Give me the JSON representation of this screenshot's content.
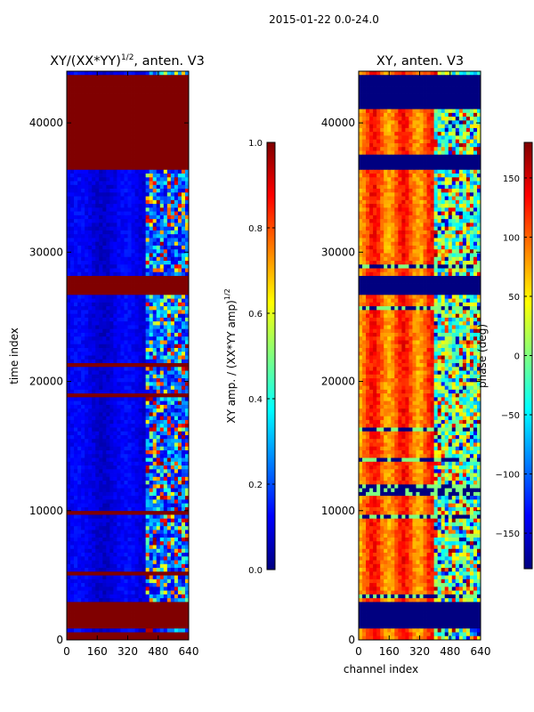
{
  "figure": {
    "suptitle": "2015-01-22 0.0-24.0"
  },
  "chart_data": [
    {
      "type": "heatmap",
      "title": "XY/(XX*YY)^{1/2}, anten. V3",
      "title_main": "XY/(XX*YY)",
      "title_exp": "1/2",
      "title_tail": ", anten. V3",
      "xlabel": "",
      "ylabel": "time index",
      "xlim": [
        0,
        640
      ],
      "ylim": [
        0,
        44000
      ],
      "xticks": [
        0,
        160,
        320,
        480,
        640
      ],
      "yticks": [
        0,
        10000,
        20000,
        30000,
        40000
      ],
      "colorbar": {
        "label": "XY amp. / (XX*YY amp)^{1/2}",
        "label_main": "XY amp. / (XX*YY amp)",
        "label_exp": "1/2",
        "range": [
          0.0,
          1.0
        ],
        "ticks": [
          0.0,
          0.2,
          0.4,
          0.6,
          0.8,
          1.0
        ],
        "tick_labels": [
          "0.0",
          "0.2",
          "0.4",
          "0.6",
          "0.8",
          "1.0"
        ],
        "colormap": "jet"
      },
      "flagged_time_ranges": [
        [
          0,
          700
        ],
        [
          900,
          2900
        ],
        [
          26800,
          28300
        ],
        [
          36500,
          43800
        ]
      ],
      "flag_value": 1.0,
      "bright_channel_range": [
        420,
        640
      ]
    },
    {
      "type": "heatmap",
      "title": "XY, anten. V3",
      "xlabel": "channel index",
      "ylabel": "",
      "xlim": [
        0,
        640
      ],
      "ylim": [
        0,
        44000
      ],
      "xticks": [
        0,
        160,
        320,
        480,
        640
      ],
      "yticks": [
        0,
        10000,
        20000,
        30000,
        40000
      ],
      "colorbar": {
        "label": "phase (deg)",
        "range": [
          -180,
          180
        ],
        "ticks": [
          -150,
          -100,
          -50,
          0,
          50,
          100,
          150
        ],
        "tick_labels": [
          "−150",
          "−100",
          "−50",
          "0",
          "50",
          "100",
          "150"
        ],
        "colormap": "jet"
      },
      "flagged_time_ranges": [
        [
          900,
          2900
        ],
        [
          26800,
          28300
        ],
        [
          36500,
          37500
        ],
        [
          41200,
          43800
        ]
      ],
      "flag_value": -180,
      "disordered_channel_range": [
        400,
        640
      ]
    }
  ]
}
